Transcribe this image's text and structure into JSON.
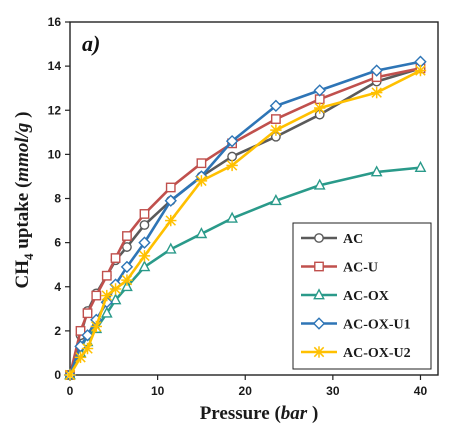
{
  "chart_data": {
    "type": "line",
    "panel_label": "a)",
    "xlabel_main": "Pressure (",
    "xlabel_unit": "bar",
    "xlabel_end": " )",
    "ylabel_prefix": "CH",
    "ylabel_sub": "4",
    "ylabel_main": " uptake (",
    "ylabel_unit": "mmol/g",
    "ylabel_end": " )",
    "xlim": [
      0,
      42
    ],
    "ylim": [
      0,
      16
    ],
    "xticks": [
      0,
      10,
      20,
      30,
      40
    ],
    "yticks": [
      0,
      2,
      4,
      6,
      8,
      10,
      12,
      14,
      16
    ],
    "grid": false,
    "legend_position": "bottom-right",
    "series": [
      {
        "name": "AC",
        "color": "#5a5a5a",
        "marker": "circle",
        "x": [
          0,
          1.2,
          2,
          3,
          4.2,
          5.2,
          6.5,
          8.5,
          11.5,
          15,
          18.5,
          23.5,
          28.5,
          35,
          40
        ],
        "y": [
          0,
          1.8,
          2.9,
          3.7,
          4.5,
          5.2,
          5.8,
          6.8,
          7.9,
          9.0,
          9.9,
          10.8,
          11.8,
          13.3,
          13.9
        ]
      },
      {
        "name": "AC-U",
        "color": "#c0504d",
        "marker": "square",
        "x": [
          0,
          1.2,
          2,
          3,
          4.2,
          5.2,
          6.5,
          8.5,
          11.5,
          15,
          18.5,
          23.5,
          28.5,
          35,
          40
        ],
        "y": [
          0,
          2.0,
          2.8,
          3.6,
          4.5,
          5.3,
          6.3,
          7.3,
          8.5,
          9.6,
          10.5,
          11.6,
          12.5,
          13.5,
          13.9
        ]
      },
      {
        "name": "AC-OX",
        "color": "#2a9a8a",
        "marker": "triangle",
        "x": [
          0,
          1.2,
          2,
          3,
          4.2,
          5.2,
          6.5,
          8.5,
          11.5,
          15,
          18.5,
          23.5,
          28.5,
          35,
          40
        ],
        "y": [
          0,
          1.0,
          1.5,
          2.1,
          2.8,
          3.4,
          4.0,
          4.9,
          5.7,
          6.4,
          7.1,
          7.9,
          8.6,
          9.2,
          9.4
        ]
      },
      {
        "name": "AC-OX-U1",
        "color": "#2e75b6",
        "marker": "diamond",
        "x": [
          0,
          1.2,
          2,
          3,
          4.2,
          5.2,
          6.5,
          8.5,
          11.5,
          15,
          18.5,
          23.5,
          28.5,
          35,
          40
        ],
        "y": [
          0,
          1.3,
          1.8,
          2.5,
          3.3,
          4.1,
          4.9,
          6.0,
          7.9,
          9.0,
          10.6,
          12.2,
          12.9,
          13.8,
          14.2
        ]
      },
      {
        "name": "AC-OX-U2",
        "color": "#ffc000",
        "marker": "asterisk",
        "x": [
          0,
          1.2,
          2,
          3,
          4.2,
          5.2,
          6.5,
          8.5,
          11.5,
          15,
          18.5,
          23.5,
          28.5,
          35,
          40
        ],
        "y": [
          0,
          0.8,
          1.2,
          2.2,
          3.6,
          3.9,
          4.3,
          5.4,
          7.0,
          8.8,
          9.5,
          11.1,
          12.1,
          12.8,
          13.8
        ]
      }
    ]
  }
}
